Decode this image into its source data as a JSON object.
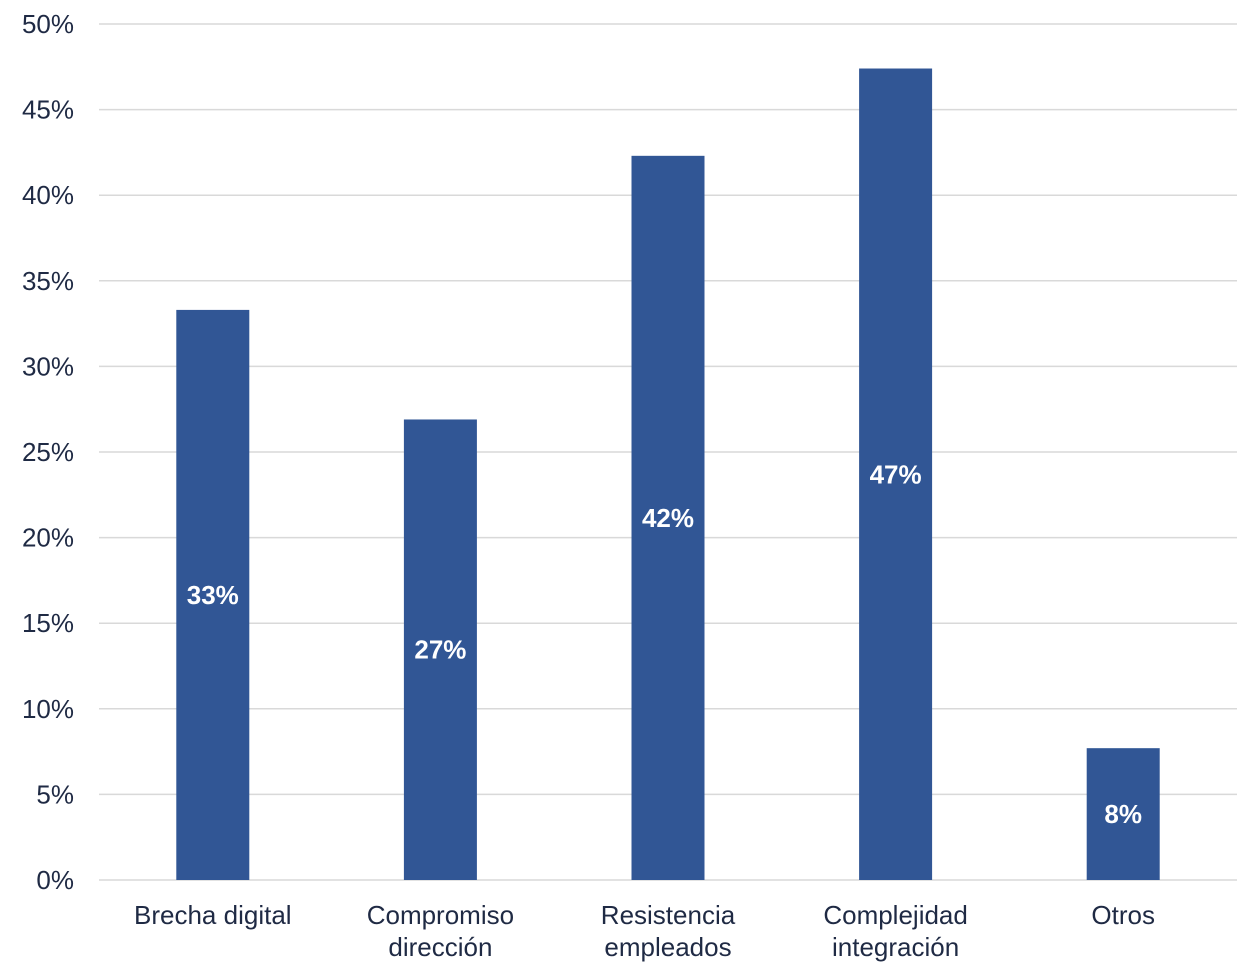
{
  "chart_data": {
    "type": "bar",
    "categories": [
      [
        "Brecha digital"
      ],
      [
        "Compromiso",
        "dirección"
      ],
      [
        "Resistencia",
        "empleados"
      ],
      [
        "Complejidad",
        "integración"
      ],
      [
        "Otros"
      ]
    ],
    "values": [
      33.3,
      26.9,
      42.3,
      47.4,
      7.7
    ],
    "data_labels": [
      "33%",
      "27%",
      "42%",
      "47%",
      "8%"
    ],
    "ylim": [
      0,
      50
    ],
    "y_ticks": [
      0,
      5,
      10,
      15,
      20,
      25,
      30,
      35,
      40,
      45,
      50
    ],
    "y_tick_labels": [
      "0%",
      "5%",
      "10%",
      "15%",
      "20%",
      "25%",
      "30%",
      "35%",
      "40%",
      "45%",
      "50%"
    ],
    "title": "",
    "xlabel": "",
    "ylabel": "",
    "grid": true,
    "legend": "none",
    "colors": {
      "bar": "#315695",
      "grid": "#d9d9d9",
      "text": "#1f2a44",
      "data_label": "#ffffff"
    }
  }
}
